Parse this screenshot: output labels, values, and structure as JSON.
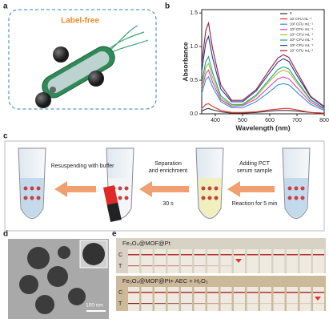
{
  "panel_labels": [
    "a",
    "b",
    "c",
    "d",
    "e"
  ],
  "panel_a": {
    "label": "Label-free"
  },
  "chart_data": {
    "type": "line",
    "x_label": "Wavelength (nm)",
    "y_label": "Absorbance",
    "x": [
      350,
      365,
      375,
      390,
      420,
      460,
      500,
      550,
      600,
      630,
      650,
      670,
      700,
      750,
      800
    ],
    "xlim": [
      350,
      800
    ],
    "xticks": [
      400,
      500,
      600,
      700,
      800
    ],
    "ylim": [
      0,
      1.55
    ],
    "yticks": [
      {
        "value": 0,
        "label": "0.0"
      },
      0.5,
      {
        "value": 1,
        "label": "1.0"
      },
      1.5
    ],
    "legend": "upper right",
    "series": [
      {
        "name": "0",
        "color": "#333333",
        "values": [
          0.04,
          0.07,
          0.08,
          0.06,
          0.03,
          0.01,
          0.01,
          0.02,
          0.04,
          0.05,
          0.05,
          0.05,
          0.04,
          0.02,
          0.01
        ]
      },
      {
        "name": "10 CFU mL⁻¹",
        "color": "#e8302a",
        "values": [
          0.08,
          0.14,
          0.15,
          0.11,
          0.05,
          0.02,
          0.02,
          0.03,
          0.06,
          0.07,
          0.08,
          0.08,
          0.06,
          0.02,
          0.01
        ]
      },
      {
        "name": "10² CFU mL⁻¹",
        "color": "#3a8fd8",
        "values": [
          0.3,
          0.51,
          0.55,
          0.4,
          0.18,
          0.09,
          0.09,
          0.18,
          0.33,
          0.43,
          0.45,
          0.43,
          0.32,
          0.14,
          0.05
        ]
      },
      {
        "name": "10³ CFU mL⁻¹",
        "color": "#d040c8",
        "values": [
          0.36,
          0.6,
          0.65,
          0.47,
          0.21,
          0.11,
          0.12,
          0.22,
          0.41,
          0.52,
          0.55,
          0.52,
          0.39,
          0.17,
          0.07
        ]
      },
      {
        "name": "10⁴ CFU mL⁻¹",
        "color": "#b8b820",
        "values": [
          0.41,
          0.69,
          0.75,
          0.54,
          0.24,
          0.12,
          0.13,
          0.26,
          0.49,
          0.61,
          0.65,
          0.62,
          0.46,
          0.2,
          0.08
        ]
      },
      {
        "name": "10⁵ CFU mL⁻¹",
        "color": "#1aa0a0",
        "values": [
          0.47,
          0.78,
          0.85,
          0.61,
          0.27,
          0.14,
          0.14,
          0.28,
          0.52,
          0.66,
          0.7,
          0.67,
          0.49,
          0.21,
          0.08
        ]
      },
      {
        "name": "10⁶ CFU mL⁻¹",
        "color": "#1c3c9a",
        "values": [
          0.63,
          1.06,
          1.15,
          0.83,
          0.37,
          0.18,
          0.18,
          0.34,
          0.61,
          0.77,
          0.82,
          0.78,
          0.57,
          0.25,
          0.1
        ]
      },
      {
        "name": "10⁷ CFU mL⁻¹",
        "color": "#a01838",
        "values": [
          0.74,
          1.24,
          1.35,
          0.97,
          0.43,
          0.2,
          0.2,
          0.36,
          0.66,
          0.83,
          0.88,
          0.84,
          0.62,
          0.26,
          0.11
        ]
      }
    ]
  },
  "panel_c": {
    "step1": "Resuspending with buffer",
    "step2a": "Separation",
    "step2b": "and enrichment",
    "time1": "30 s",
    "step3a": "Adding PCT",
    "step3b": "serum sample",
    "time2": "Reaction for 5 min"
  },
  "panel_d": {
    "scale_bar": "100 nm"
  },
  "panel_e": {
    "rows": [
      {
        "title": "Fe₃O₄@MOF@Pt",
        "c": "C",
        "t": "T"
      },
      {
        "title": "Fe₃O₄@MOF@Pt+ AEC + H₂O₂",
        "c": "C",
        "t": "T"
      }
    ]
  }
}
